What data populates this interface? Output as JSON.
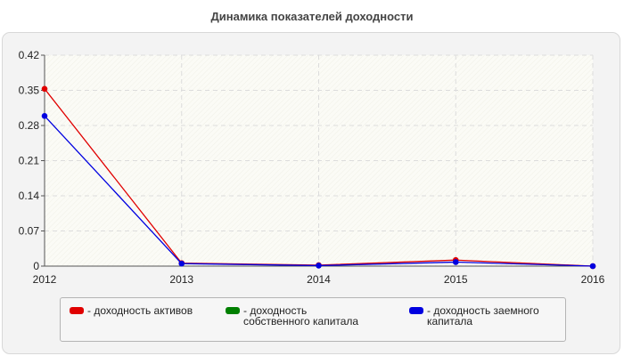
{
  "chart_data": {
    "type": "line",
    "title": "Динамика показателей доходности",
    "xlabel": "",
    "ylabel": "",
    "x": [
      "2012",
      "2013",
      "2014",
      "2015",
      "2016"
    ],
    "ylim": [
      0,
      0.42
    ],
    "yticks": [
      "0",
      "0.07",
      "0.14",
      "0.21",
      "0.28",
      "0.35",
      "0.42"
    ],
    "grid": true,
    "legend_position": "bottom",
    "series": [
      {
        "name": "- доходность активов",
        "color": "#e00000",
        "values": [
          0.353,
          0.006,
          0.002,
          0.012,
          0.0
        ]
      },
      {
        "name": "- доходность собственного капитала",
        "color": "#008000",
        "values": [
          null,
          null,
          null,
          null,
          null
        ]
      },
      {
        "name": "- доходность заемного капитала",
        "color": "#0000e0",
        "values": [
          0.299,
          0.005,
          0.001,
          0.008,
          0.0
        ]
      }
    ]
  }
}
